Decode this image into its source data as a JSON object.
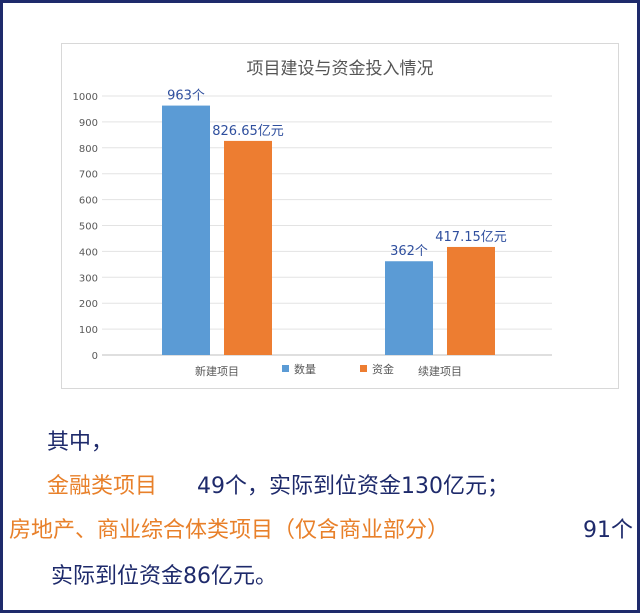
{
  "colors": {
    "series1": "#5b9bd5",
    "series2": "#ed7d31",
    "navy": "#1e2a6b",
    "orange": "#e8802a",
    "data_label_blue": "#2f4f9e"
  },
  "chart_data": {
    "type": "bar",
    "title": "项目建设与资金投入情况",
    "categories": [
      "新建项目",
      "续建项目"
    ],
    "series": [
      {
        "name": "数量",
        "values": [
          963,
          362
        ],
        "labels": [
          "963个",
          "362个"
        ]
      },
      {
        "name": "资金",
        "values": [
          826.65,
          417.15
        ],
        "labels": [
          "826.65亿元",
          "417.15亿元"
        ]
      }
    ],
    "ylim": [
      0,
      1000
    ],
    "yticks": [
      0,
      100,
      200,
      300,
      400,
      500,
      600,
      700,
      800,
      900,
      1000
    ],
    "grid": true,
    "legend": "bottom"
  },
  "notes": {
    "intro": "其中，",
    "finance_label": "金融类项目",
    "finance_detail": "49个，实际到位资金130亿元；",
    "realestate_label": "房地产、商业综合体类项目（仅含商业部分）",
    "realestate_count": "91个",
    "realestate_funds": "实际到位资金86亿元。"
  }
}
